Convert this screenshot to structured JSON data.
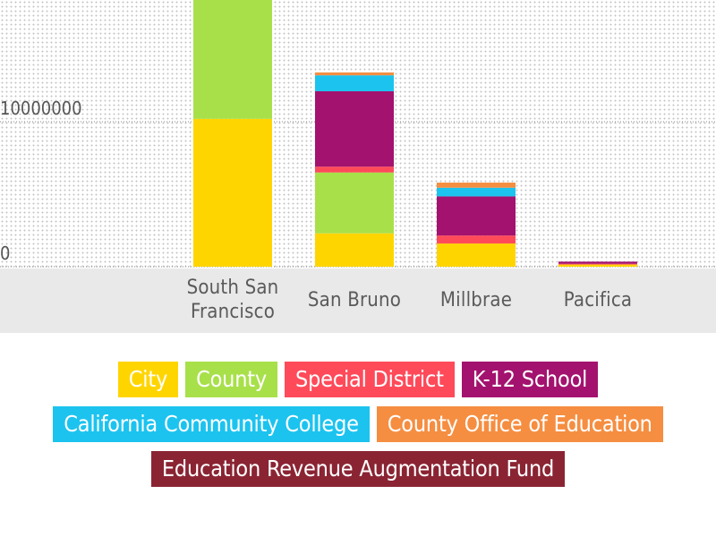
{
  "chart_data": {
    "type": "bar",
    "stacked": true,
    "categories": [
      "South San Francisco",
      "San Bruno",
      "Millbrae",
      "Pacifica"
    ],
    "category_labels": [
      [
        "South San",
        "Francisco"
      ],
      [
        "San Bruno"
      ],
      [
        "Millbrae"
      ],
      [
        "Pacifica"
      ]
    ],
    "y_ticks": [
      {
        "value": 0,
        "label": "0"
      },
      {
        "value": 10000000,
        "label": "10000000"
      }
    ],
    "ylim": [
      0,
      19000000
    ],
    "grid": true,
    "legend_placement": "bottom",
    "series": [
      {
        "name": "City",
        "color": "#ffd500",
        "values": [
          10200000,
          2300000,
          1600000,
          150000
        ]
      },
      {
        "name": "County",
        "color": "#a8e04a",
        "values": [
          8800000,
          4200000,
          0,
          0
        ]
      },
      {
        "name": "Special District",
        "color": "#ff4a5a",
        "values": [
          0,
          400000,
          550000,
          50000
        ]
      },
      {
        "name": "K-12 School",
        "color": "#a3126e",
        "values": [
          0,
          5200000,
          2700000,
          150000
        ]
      },
      {
        "name": "California Community College",
        "color": "#1cc3ef",
        "values": [
          0,
          1100000,
          600000,
          0
        ]
      },
      {
        "name": "County Office of Education",
        "color": "#f58e41",
        "values": [
          0,
          200000,
          350000,
          0
        ]
      },
      {
        "name": "Education Revenue Augmentation Fund",
        "color": "#8a2433",
        "values": [
          0,
          0,
          0,
          0
        ]
      }
    ]
  },
  "legend_rows": [
    [
      0,
      1,
      2,
      3
    ],
    [
      4,
      5
    ],
    [
      6
    ]
  ]
}
